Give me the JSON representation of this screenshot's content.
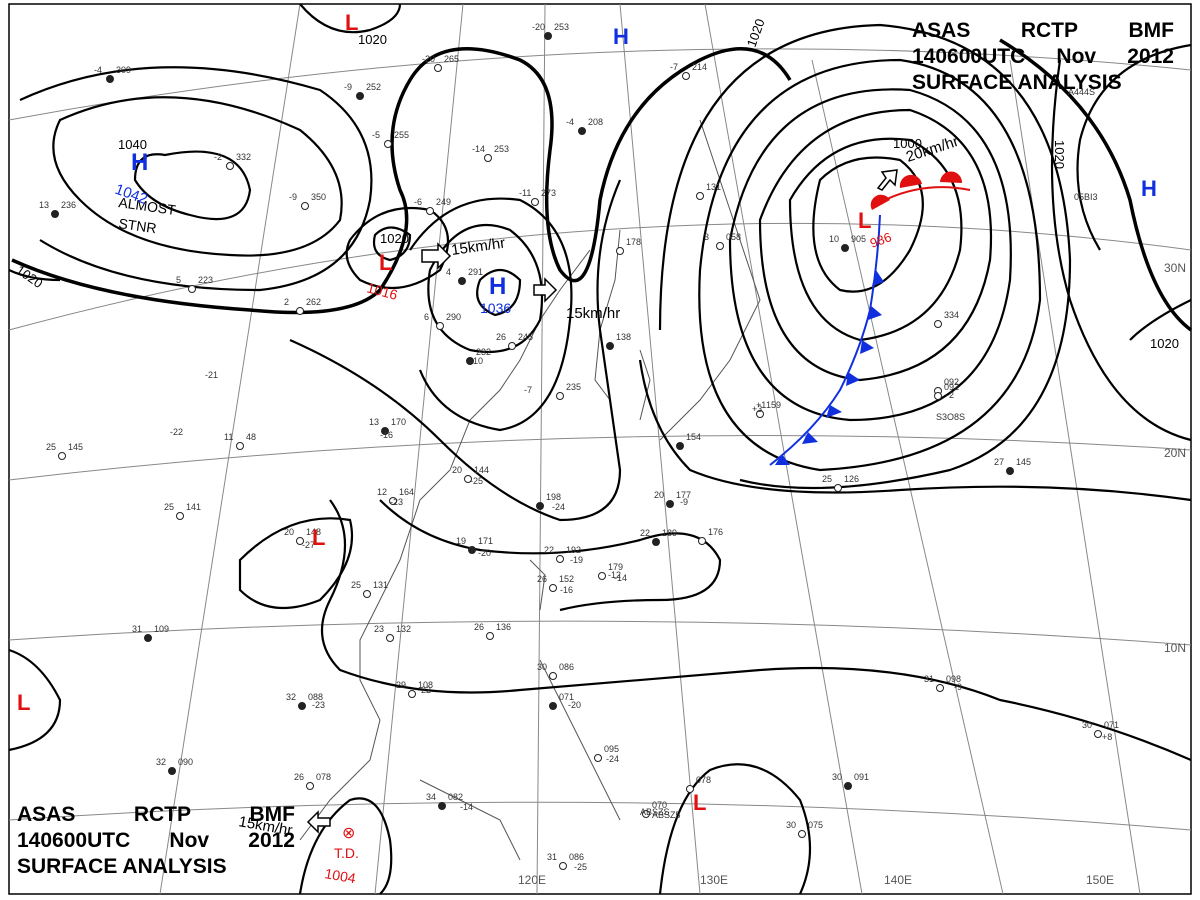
{
  "header": {
    "line1": [
      "ASAS",
      "RCTP",
      "BMF"
    ],
    "line2": [
      "140600UTC",
      "Nov",
      "2012"
    ],
    "line3": "SURFACE  ANALYSIS"
  },
  "colors": {
    "high": "#1030e0",
    "low": "#e01010",
    "isobar": "#000000",
    "grid": "#777777",
    "coast": "#555555",
    "cold_front": "#1030e0",
    "warm_front": "#e01010"
  },
  "grid_labels": {
    "lon": [
      "120E",
      "130E",
      "140E",
      "150E"
    ],
    "lat": [
      "30N",
      "20N",
      "10N"
    ]
  },
  "pressure_centers": [
    {
      "type": "H",
      "value": "1042",
      "note": "ALMOST STNR"
    },
    {
      "type": "H",
      "value": "1036"
    },
    {
      "type": "H",
      "value": ""
    },
    {
      "type": "H",
      "value": ""
    },
    {
      "type": "L",
      "value": ""
    },
    {
      "type": "L",
      "value": "1016"
    },
    {
      "type": "L",
      "value": "986"
    },
    {
      "type": "L",
      "value": ""
    },
    {
      "type": "L",
      "value": ""
    },
    {
      "type": "L",
      "value": ""
    }
  ],
  "td": {
    "symbol": "⊗",
    "label": "T.D.",
    "value": "1004"
  },
  "isobar_labels": [
    "1040",
    "1020",
    "1020",
    "1020",
    "1020",
    "1000",
    "1020",
    "1020"
  ],
  "motion": [
    "15km/hr",
    "15km/hr",
    "20km/hr",
    "15km/hr"
  ],
  "notes": {
    "almost1": "ALMOST",
    "almost2": "STNR"
  },
  "stations": [
    {
      "t": "-4",
      "p": "309"
    },
    {
      "t": "-9",
      "p": "350"
    },
    {
      "t": "-2",
      "p": "332"
    },
    {
      "t": "-20",
      "p": "253"
    },
    {
      "t": "-20",
      "p": "265"
    },
    {
      "t": "-5",
      "p": "255"
    },
    {
      "t": "-9",
      "p": "252"
    },
    {
      "t": "-14",
      "p": "253"
    },
    {
      "t": "-6",
      "p": "249"
    },
    {
      "t": "-4",
      "p": "208"
    },
    {
      "t": "-7",
      "p": "214"
    },
    {
      "t": "-11",
      "p": "273"
    },
    {
      "t": "13",
      "p": "236"
    },
    {
      "t": "5",
      "p": "223"
    },
    {
      "t": "2",
      "p": "262"
    },
    {
      "t": "4",
      "p": "291"
    },
    {
      "t": "6",
      "p": "290"
    },
    {
      "t": "26",
      "p": "245"
    },
    {
      "t": "",
      "p": "232"
    },
    {
      "t": "",
      "p": "235"
    },
    {
      "t": "",
      "p": "178"
    },
    {
      "t": "",
      "p": "138"
    },
    {
      "t": "3",
      "p": "058"
    },
    {
      "t": "",
      "p": "131"
    },
    {
      "t": "10",
      "p": "905"
    },
    {
      "t": "",
      "p": "334"
    },
    {
      "t": "",
      "p": "092"
    },
    {
      "t": "27",
      "p": "145"
    },
    {
      "t": "25",
      "p": "145"
    },
    {
      "t": "11",
      "p": "48"
    },
    {
      "t": "13",
      "p": "170"
    },
    {
      "t": "12",
      "p": "164"
    },
    {
      "t": "20",
      "p": "144"
    },
    {
      "t": "",
      "p": "198"
    },
    {
      "t": "25",
      "p": "141"
    },
    {
      "t": "20",
      "p": "148"
    },
    {
      "t": "19",
      "p": "171"
    },
    {
      "t": "22",
      "p": "192"
    },
    {
      "t": "",
      "p": "179"
    },
    {
      "t": "22",
      "p": "189"
    },
    {
      "t": "",
      "p": "176"
    },
    {
      "t": "25",
      "p": "126"
    },
    {
      "t": "20",
      "p": "177"
    },
    {
      "t": "26",
      "p": "152"
    },
    {
      "t": "25",
      "p": "131"
    },
    {
      "t": "31",
      "p": "109"
    },
    {
      "t": "23",
      "p": "132"
    },
    {
      "t": "26",
      "p": "136"
    },
    {
      "t": "32",
      "p": "088"
    },
    {
      "t": "29",
      "p": "108"
    },
    {
      "t": "30",
      "p": "086"
    },
    {
      "t": "",
      "p": "071"
    },
    {
      "t": "31",
      "p": "098"
    },
    {
      "t": "30",
      "p": "071"
    },
    {
      "t": "32",
      "p": "090"
    },
    {
      "t": "26",
      "p": "078"
    },
    {
      "t": "",
      "p": "095"
    },
    {
      "t": "34",
      "p": "082"
    },
    {
      "t": "",
      "p": "070"
    },
    {
      "t": "",
      "p": "078"
    },
    {
      "t": "30",
      "p": "091"
    },
    {
      "t": "30",
      "p": "075"
    },
    {
      "t": "31",
      "p": "086"
    },
    {
      "t": "",
      "p": "154"
    },
    {
      "t": "",
      "p": "159"
    },
    {
      "t": "",
      "p": "092"
    }
  ],
  "plain_labels": [
    "-21",
    "-22",
    "-16",
    "-23",
    "-25",
    "-24",
    "-27",
    "-20",
    "-19",
    "-14",
    "-12",
    "-16",
    "-7",
    "-10",
    "-9",
    "-22",
    "-23",
    "-20",
    "-24",
    "-14",
    "-25",
    "+1",
    "+3",
    "-9",
    "+8",
    "-2",
    "ABSZ5",
    "05BI3",
    "A444S",
    "S3O8S",
    "ABSZS"
  ]
}
